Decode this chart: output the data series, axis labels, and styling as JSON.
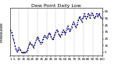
{
  "title": "Dew Point Daily Low",
  "left_label": "Milwaukee",
  "background_color": "#ffffff",
  "line_color": "#0000ee",
  "grid_color": "#888888",
  "x_values": [
    1,
    2,
    3,
    4,
    5,
    6,
    7,
    8,
    9,
    10,
    11,
    12,
    13,
    14,
    15,
    16,
    17,
    18,
    19,
    20,
    21,
    22,
    23,
    24,
    25,
    26,
    27,
    28,
    29,
    30,
    31,
    32,
    33,
    34,
    35,
    36,
    37,
    38,
    39,
    40,
    41,
    42,
    43,
    44,
    45,
    46,
    47,
    48,
    49,
    50,
    51,
    52,
    53,
    54,
    55,
    56,
    57,
    58,
    59,
    60,
    61,
    62,
    63,
    64,
    65,
    66,
    67,
    68,
    69,
    70,
    71,
    72,
    73,
    74,
    75,
    76,
    77,
    78,
    79,
    80,
    81,
    82,
    83,
    84,
    85,
    86,
    87,
    88,
    89,
    90,
    91,
    92,
    93,
    94,
    95,
    96,
    97,
    98,
    99,
    100
  ],
  "y_values": [
    38,
    35,
    30,
    25,
    20,
    14,
    10,
    6,
    8,
    12,
    10,
    8,
    5,
    5,
    5,
    5,
    5,
    6,
    8,
    12,
    16,
    20,
    18,
    16,
    14,
    12,
    16,
    20,
    24,
    28,
    26,
    22,
    20,
    18,
    20,
    24,
    28,
    30,
    28,
    26,
    28,
    32,
    34,
    32,
    28,
    25,
    24,
    28,
    32,
    35,
    38,
    36,
    32,
    30,
    28,
    32,
    35,
    38,
    36,
    32,
    35,
    40,
    44,
    40,
    36,
    38,
    42,
    46,
    50,
    48,
    44,
    42,
    46,
    52,
    55,
    58,
    54,
    50,
    55,
    58,
    62,
    58,
    54,
    58,
    62,
    60,
    56,
    60,
    63,
    60,
    57,
    55,
    58,
    62,
    58,
    60,
    62,
    58,
    56,
    54
  ],
  "vline_positions": [
    10,
    20,
    30,
    40,
    50,
    60,
    70,
    80,
    90
  ],
  "ylim": [
    0,
    70
  ],
  "xlim": [
    0.5,
    100.5
  ],
  "ytick_values": [
    5,
    15,
    25,
    35,
    45,
    55,
    65
  ],
  "xtick_positions": [
    1,
    5,
    10,
    15,
    20,
    25,
    30,
    35,
    40,
    45,
    50,
    55,
    60,
    65,
    70,
    75,
    80,
    85,
    90,
    95,
    100
  ],
  "xtick_labels": [
    "1",
    "5",
    "10",
    "15",
    "20",
    "25",
    "30",
    "35",
    "40",
    "45",
    "50",
    "55",
    "60",
    "65",
    "70",
    "75",
    "80",
    "85",
    "90",
    "95",
    "100"
  ],
  "title_fontsize": 4.5,
  "tick_fontsize": 3.0,
  "label_fontsize": 3.5,
  "line_width": 0.7,
  "marker_size": 1.5
}
